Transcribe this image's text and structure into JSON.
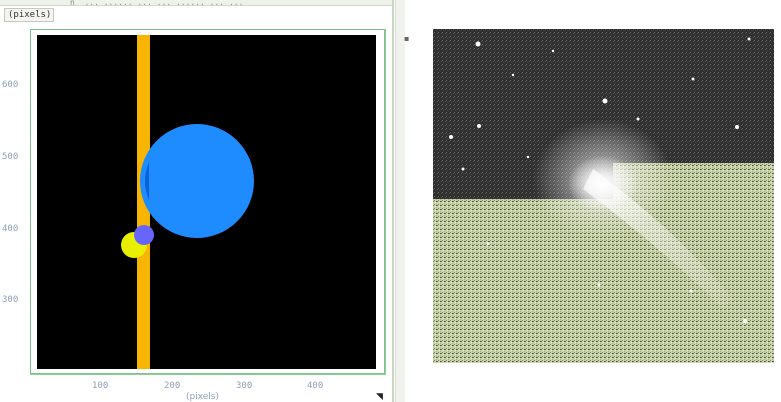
{
  "window": {
    "title_fragment": "n_ ... ...... ... ..._...... ... ...",
    "units_label": "(pixels)"
  },
  "plot": {
    "x_ticks": [
      "100",
      "200",
      "300",
      "400"
    ],
    "y_ticks": [
      "600",
      "500",
      "400",
      "300"
    ],
    "x_axis_title": "(pixels)",
    "grip_glyph": "◥"
  },
  "overlay_colors": {
    "background": "#000000",
    "vertical_band": "#f7b500",
    "large_circle": "#1e8cff",
    "small_circle_purple": "#6666ff",
    "small_circle_yellow": "#e8f000"
  },
  "image": {
    "description_icons": [
      "galaxy-image-icon"
    ]
  }
}
